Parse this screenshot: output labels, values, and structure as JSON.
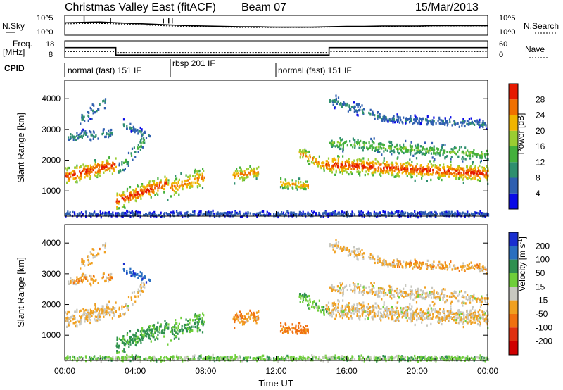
{
  "header": {
    "station": "Christmas Valley East (fitACF)",
    "beam": "Beam 07",
    "date": "15/Mar/2013"
  },
  "colors": {
    "power_scale": [
      "#0a0ae6",
      "#2f5fb0",
      "#2f8f6f",
      "#44b03c",
      "#9acd32",
      "#f0b400",
      "#f07000",
      "#e61a00"
    ],
    "velocity_scale": [
      "#1a2fd0",
      "#2a6fc0",
      "#2f9050",
      "#6fcf3a",
      "#c8c8c0",
      "#f0a020",
      "#f07010",
      "#e03010",
      "#d00000"
    ],
    "axis": "#000000"
  },
  "chart_data": [
    {
      "panel": "noise",
      "type": "line",
      "left_label": "N.Sky",
      "right_label": "N.Search",
      "left_ticks": [
        "10^5",
        "10^0"
      ],
      "right_ticks": [
        "10^5",
        "10^0"
      ],
      "series": [
        {
          "x": [
            0,
            1,
            2,
            3,
            4,
            5,
            6,
            7,
            8,
            9,
            10,
            11,
            12,
            13,
            14,
            15,
            16,
            17,
            18,
            19,
            20,
            21,
            22,
            23,
            24
          ],
          "values": [
            3.2,
            3.3,
            3.4,
            3.2,
            3.0,
            2.8,
            2.6,
            2.4,
            2.3,
            2.2,
            2.1,
            2.1,
            2.0,
            2.0,
            2.0,
            2.1,
            2.2,
            2.2,
            2.3,
            2.3,
            2.3,
            2.4,
            2.4,
            2.4,
            2.4
          ]
        },
        {
          "x": [
            0,
            1,
            2,
            3,
            4,
            5,
            6,
            7,
            8,
            9,
            10,
            11,
            12,
            13,
            14,
            15,
            16,
            17,
            18,
            19,
            20,
            21,
            22,
            23,
            24
          ],
          "values": [
            2.9,
            3.0,
            3.0,
            2.9,
            2.7,
            2.5,
            2.3,
            2.2,
            2.1,
            2.0,
            1.9,
            1.9,
            1.9,
            1.9,
            1.9,
            2.0,
            2.1,
            2.1,
            2.2,
            2.2,
            2.2,
            2.3,
            2.3,
            2.3,
            2.3
          ]
        }
      ],
      "spikes": [
        {
          "x": 1.1,
          "value": 5
        },
        {
          "x": 2.6,
          "value": 4.5
        },
        {
          "x": 5.6,
          "value": 4.3
        },
        {
          "x": 5.9,
          "value": 4.6
        },
        {
          "x": 6.1,
          "value": 4.6
        }
      ]
    },
    {
      "panel": "frequency",
      "type": "line",
      "left_label": "Freq. [MHz]",
      "right_label": "Nave",
      "left_ticks": [
        18,
        8
      ],
      "right_ticks": [
        60,
        0
      ],
      "freq_segments": [
        {
          "x": [
            0,
            2.9
          ],
          "value": 15
        },
        {
          "x": [
            2.9,
            15
          ],
          "value": 9.5
        },
        {
          "x": [
            15,
            24
          ],
          "value": 15
        }
      ],
      "nave_segments": [
        {
          "x": [
            0,
            2.9
          ],
          "value": 24
        },
        {
          "x": [
            2.9,
            15
          ],
          "value": 20
        },
        {
          "x": [
            15,
            24
          ],
          "value": 24
        }
      ]
    },
    {
      "panel": "cpid",
      "type": "table",
      "label": "CPID",
      "entries": [
        {
          "start": 0,
          "end": 6,
          "text": "normal (fast) 151 IF"
        },
        {
          "start": 6,
          "end": 12,
          "text": "rbsp 201 IF"
        },
        {
          "start": 12,
          "end": 24,
          "text": "normal (fast) 151 IF"
        }
      ]
    },
    {
      "panel": "power",
      "type": "heatmap",
      "ylabel": "Slant Range [km]",
      "y_ticks": [
        1000,
        2000,
        3000,
        4000
      ],
      "ylim": [
        180,
        4600
      ],
      "colorbar_label": "Power [dB]",
      "colorbar_ticks": [
        28,
        24,
        20,
        16,
        12,
        8,
        4
      ],
      "zlim": [
        0,
        32
      ]
    },
    {
      "panel": "velocity",
      "type": "heatmap",
      "ylabel": "Slant Range [km]",
      "y_ticks": [
        1000,
        2000,
        3000,
        4000
      ],
      "ylim": [
        180,
        4600
      ],
      "colorbar_label": "Velocity [m s^-1]",
      "colorbar_ticks": [
        200,
        100,
        50,
        15,
        -15,
        -50,
        -100,
        -200
      ],
      "xlabel": "Time UT",
      "x_ticks": [
        "00:00",
        "04:00",
        "08:00",
        "12:00",
        "16:00",
        "20:00",
        "00:00"
      ],
      "xlim": [
        0,
        24
      ]
    }
  ]
}
